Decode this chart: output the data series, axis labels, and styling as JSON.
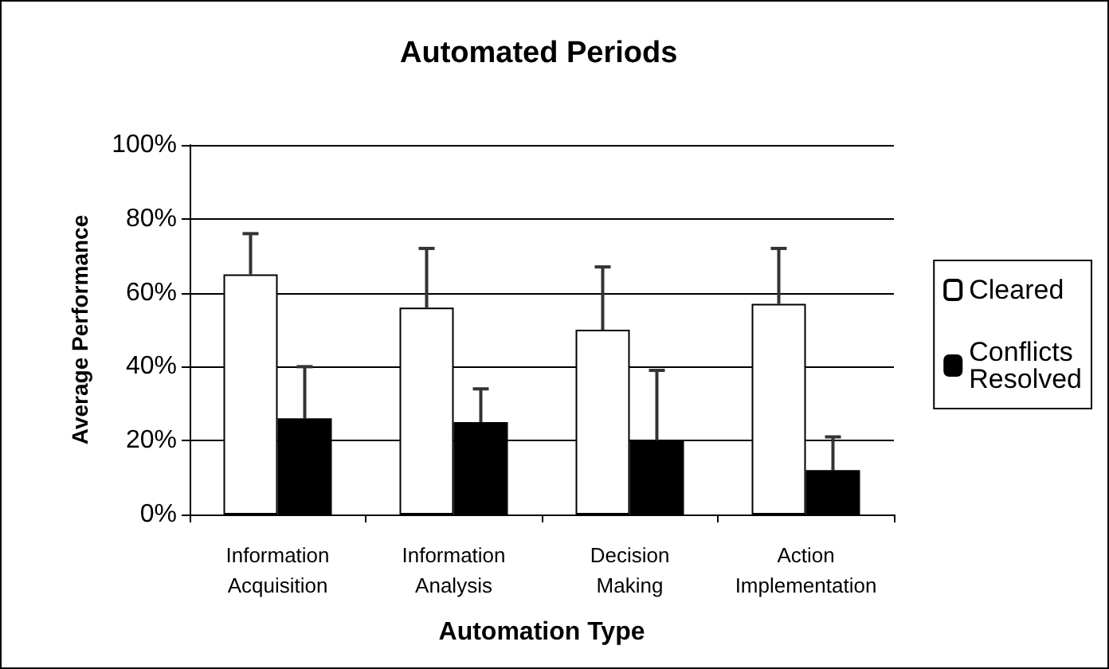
{
  "chart_data": {
    "type": "bar",
    "title": "Automated Periods",
    "xlabel": "Automation Type",
    "ylabel": "Average Performance",
    "categories": [
      "Information\nAcquisition",
      "Information\nAnalysis",
      "Decision\nMaking",
      "Action\nImplementation"
    ],
    "series": [
      {
        "name": "Cleared",
        "color": "#ffffff",
        "values": [
          65,
          56,
          50,
          57
        ],
        "errors": [
          [
            65,
            76
          ],
          [
            56,
            72
          ],
          [
            50,
            67
          ],
          [
            57,
            72
          ]
        ]
      },
      {
        "name": "Conflicts\nResolved",
        "color": "#000000",
        "values": [
          26,
          25,
          20,
          12
        ],
        "errors": [
          [
            26,
            40
          ],
          [
            25,
            34
          ],
          [
            20,
            39
          ],
          [
            12,
            21
          ]
        ]
      }
    ],
    "ylim": [
      0,
      100
    ],
    "yticks": [
      {
        "value": 0,
        "label": "0%"
      },
      {
        "value": 20,
        "label": "20%"
      },
      {
        "value": 40,
        "label": "40%"
      },
      {
        "value": 60,
        "label": "60%"
      },
      {
        "value": 80,
        "label": "80%"
      },
      {
        "value": 100,
        "label": "100%"
      }
    ],
    "grid": "y",
    "legend": "right"
  }
}
